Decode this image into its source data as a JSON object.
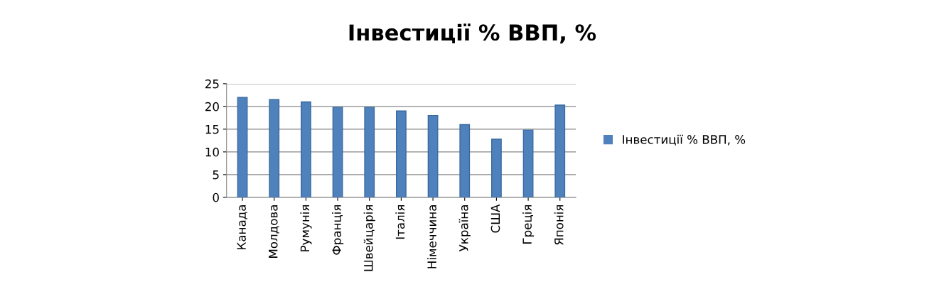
{
  "chart_data": {
    "type": "bar",
    "title": "Інвестиції % ВВП, %",
    "categories": [
      "Канада",
      "Молдова",
      "Румунія",
      "Франція",
      "Швейцарія",
      "Італія",
      "Німеччина",
      "Україна",
      "США",
      "Греція",
      "Японія"
    ],
    "series": [
      {
        "name": "Інвестиції % ВВП, %",
        "color": "#4f81bd",
        "values": [
          22,
          21.5,
          21,
          19.8,
          19.8,
          19,
          18,
          16,
          12.8,
          14.8,
          20.3
        ]
      }
    ],
    "ylim": [
      0,
      25
    ],
    "yticks": [
      0,
      5,
      10,
      15,
      20,
      25
    ],
    "grid": "y",
    "legend": "right"
  }
}
